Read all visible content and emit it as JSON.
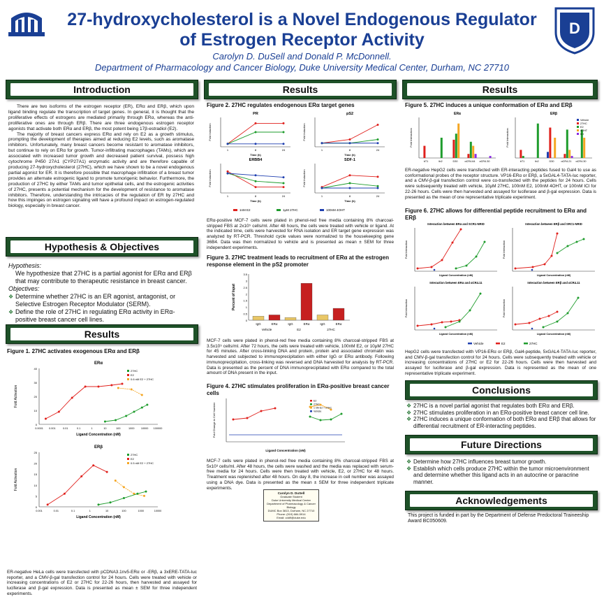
{
  "header": {
    "title_line1": "27-hydroxycholesterol is a Novel Endogenous Regulator",
    "title_line2": "of Estrogen Receptor Activity",
    "authors": "Carolyn D. DuSell and Donald P. McDonnell.",
    "department": "Department of Pharmacology and Cancer Biology, Duke University Medical Center, Durham, NC 27710"
  },
  "colors": {
    "bar": "#1e5128",
    "title": "#1a3f94",
    "vehicle": "#1f3fb0",
    "e2": "#e0201c",
    "c27": "#1e9c2c",
    "e2c27": "#f5a623",
    "icon": "#1a3f94"
  },
  "icons": [
    "duke-left-logo-icon",
    "duke-shield-icon"
  ],
  "sections": {
    "introduction": "Introduction",
    "hypothesis": "Hypothesis & Objectives",
    "results": "Results",
    "conclusions": "Conclusions",
    "future": "Future Directions",
    "acknowledgements": "Acknowledgements"
  },
  "intro": {
    "p1": "There are two isoforms of the estrogen receptor (ER), ERα and ERβ, which upon ligand binding regulate the transcription of target genes. In general, it is thought that the proliferative effects of estrogens are mediated primarily through ERα, whereas the anti-proliferative ones are through ERβ. There are three endogenous estrogen receptor agonists that activate both ERα and ERβ, the most potent being 17β-estradiol (E2).",
    "p2": "The majority of breast cancers express ERα and rely on E2 as a growth stimulus, prompting the development of therapies aimed at reducing E2 levels, such as aromatase inhibitors. Unfortunately, many breast cancers become resistant to aromatase inhibitors, but continue to rely on ERα for growth. Tumor-infiltrating macrophages (TAMs), which are associated with increased tumor growth and decreased patient survival, possess high cytochrome P450 27A1 (CYP27A1) enzymatic activity and are therefore capable of producing 27-hydroxycholesterol (27HC), which we have shown to be a novel endogenous partial agonist for ER. It is therefore possible that macrophage infiltration of a breast tumor provides an alternate estrogenic ligand to promote tumorigenic behavior. Furthermore, the production of 27HC by either TAMs and tumor epithelial cells, and the estrogenic activities of 27HC, presents a potential mechanism for the development of resistance to aromatase inhibitors. Therefore, understanding the intricacies of the regulation of ER by 27HC and how this impinges on estrogen signaling will have a profound impact on estrogen-regulated biology, especially in breast cancer."
  },
  "hypothesis": {
    "label": "Hypothesis:",
    "text": "We hypothesize that 27HC is a partial agonist for ERα and ERβ that may contribute to therapeutic resistance in breast cancer.",
    "obj_label": "Objectives:",
    "objectives": [
      "Determine whether 27HC is an ER agonist, antagonist, or Selective Estrogen Receptor Modulator (SERM).",
      "Define the role of 27HC in regulating ERα activity in ERα-positive breast cancer cell lines."
    ]
  },
  "fig1": {
    "title": "Figure 1. 27HC activates exogenous ERα and ERβ",
    "caption": "ER-negative HeLa cells were transfected with pCDNA3.1nv5-ERα or -ERβ, a 3xERE-TATA-luc reporter, and a CMV-β-gal transfection control for 24 hours. Cells were treated with vehicle or increasing concentrations of E2 or 27HC for 22-26 hours, then harvested and assayed for luciferase and β-gal expression. Data is presented as mean ± SEM for three independent experiments."
  },
  "fig2": {
    "title": "Figure 2. 27HC regulates endogenous ERα target genes",
    "caption": "ERα-positive MCF-7 cells were plated in phenol-red free media containing 8% charcoal-stripped FBS at 2x10⁵ cells/ml. After 48 hours, the cells were treated with vehicle or ligand. At the indicated time, cells were harvested for RNA isolation and ER target gene expression was analyzed by RT-PCR. Threshold cycle values were normalized to the housekeeping gene 36B4. Data was then normalized to vehicle and is presented as mean ± SEM for three independent experiments."
  },
  "fig3": {
    "title": "Figure 3. 27HC treatment leads to recruitment of ERα at the estrogen response element in the pS2 promoter",
    "caption": "MCF-7 cells were plated in phenol-red free media containing 8% charcoal-stripped FBS at 3.5x10⁵ cells/ml. After 72 hours, the cells were treated with vehicle, 100nM E2, or 10μM 27HC for 45 minutes. After cross-linking DNA and protein, protein and associated chromatin was harvested and subjected to immunoprecipitation with either IgG or ERα antibody. Following immunoprecipitation, cross-linking was reversed and DNA harvested for analysis by RT-PCR. Data is presented as the percent of DNA immunoprecipitated with ERα compared to the total amount of DNA present in the input."
  },
  "fig4": {
    "title": "Figure 4. 27HC stimulates proliferation in ERα-positive breast cancer cells",
    "caption": "MCF-7 cells were plated in phenol-red free media containing 8% charcoal-stripped FBS at 5x10³ cells/ml. After 48 hours, the cells were washed and the media was replaced with serum-free media for 24 hours. Cells were then treated with vehicle, E2, or 27HC for 48 hours. Treatment was replenished after 48 hours. On day 8, the increase in cell number was assayed using a DNA dye. Data is presented as the mean ± SEM for three independent triplicate experiments."
  },
  "fig5": {
    "title": "Figure 5. 27HC induces a unique conformation of ERα and ERβ",
    "caption": "ER-negative HepG2 cells were transfected with ER-interacting peptides fused to Gal4 to use as conformational probes of the receptor structure. VP16-ERα or ERβ, a 5xGAL4-TATA-luc reporter, and a CMV-β-gal transfection control were co-transfected with the peptides for 24 hours. Cells were subsequently treated with vehicle, 10μM 27HC, 100nM E2, 100nM 4OHT, or 100nM ICI for 22-26 hours. Cells were then harvested and assayed for luciferase and β-gal expression. Data is presented as the mean of one representative triplicate experiment."
  },
  "fig6": {
    "title": "Figure 6. 27HC allows for differential peptide recruitment to ERα and ERβ",
    "caption": "HepG2 cells were transfected with VP16-ERα or ERβ, Gal4-peptide, 5xGAL4-TATA-luc reporter, and CMV-β-gal transfection control for 24 hours. Cells were subsequently treated with vehicle or increasing concentrations of 27HC or E2 for 22-26 hours. Cells were then harvested and assayed for luciferase and β-gal expression. Data is represented as the mean of one representative triplicate experiment."
  },
  "conclusions": [
    "27HC is a novel partial agonist that regulates both ERα and ERβ.",
    "27HC stimulates proliferation in an ERα-positive breast cancer cell line.",
    "27HC induces a unique conformation of both ERα and ERβ that allows for differential recruitment of ER-interacting peptides."
  ],
  "future": [
    "Determine how 27HC influences breast tumor growth.",
    "Establish which cells produce 27HC within the tumor microenvironment and determine whether this ligand acts in an autocrine or paracrine manner."
  ],
  "ack": "This project is funded in part by the Department of Defense Predoctoral Traineeship Award BC050609.",
  "card": {
    "name": "Carolyn D. DuSell",
    "role": "Graduate Student",
    "org": "Duke University Medical Center",
    "dept": "Department of Pharmacology & Cancer Biology",
    "addr": "DUMC Box 3813, Durham, NC 27710",
    "phone": "Phone: (919) 684-5914",
    "email": "Email: cdd9@duke.edu"
  },
  "chart_data": [
    {
      "type": "line",
      "title": "ERα",
      "xlabel": "Ligand Concentration (nM)",
      "ylabel": "Fold Activation",
      "xscale": "log",
      "ylim": [
        0,
        40
      ],
      "x": [
        "0.0001",
        "0.001",
        "0.01",
        "0.1",
        "1",
        "10",
        "100",
        "1000",
        "10000",
        "100000"
      ],
      "series": [
        {
          "name": "27HC",
          "color": "green"
        },
        {
          "name": "E2",
          "color": "red"
        },
        {
          "name": "0.6 nM E2 + 27HC",
          "color": "orange"
        }
      ]
    },
    {
      "type": "line",
      "title": "ERβ",
      "xlabel": "Ligand Concentration (nM)",
      "ylabel": "Fold Activation",
      "xscale": "log",
      "ylim": [
        0,
        25
      ],
      "x": [
        "0.001",
        "0.01",
        "0.1",
        "1",
        "10",
        "100",
        "1000",
        "10000"
      ],
      "series": [
        {
          "name": "27HC"
        },
        {
          "name": "E2"
        },
        {
          "name": "0.5 nM E2 + 27HC"
        }
      ]
    },
    {
      "type": "line",
      "title": "PR",
      "xlabel": "Time (h)",
      "ylabel": "Fold Induction",
      "x": [
        1,
        8,
        24
      ],
      "series": [
        {
          "name": "1nM E2",
          "values": [
            1,
            8,
            8
          ]
        },
        {
          "name": "1μM 27HC",
          "values": [
            1,
            5,
            5
          ]
        },
        {
          "name": "100nM 4OHT",
          "values": [
            1,
            1,
            1
          ]
        }
      ]
    },
    {
      "type": "line",
      "title": "pS2",
      "xlabel": "Time (h)",
      "ylabel": "Fold Induction",
      "x": [
        1,
        8,
        24
      ],
      "series": [
        {
          "name": "1nM E2",
          "values": [
            1,
            2,
            6
          ]
        },
        {
          "name": "1μM 27HC",
          "values": [
            1,
            1,
            2
          ]
        },
        {
          "name": "100nM 4OHT",
          "values": [
            1,
            1,
            1
          ]
        }
      ]
    },
    {
      "type": "line",
      "title": "ERBB4",
      "xlabel": "Time (h)",
      "ylabel": "Fold Induction",
      "x": [
        1,
        8,
        24
      ],
      "series": [
        {
          "name": "1nM E2",
          "values": [
            1.1,
            0.3,
            0.3
          ]
        },
        {
          "name": "1μM 27HC",
          "values": [
            1,
            0.6,
            0.5
          ]
        },
        {
          "name": "100nM 4OHT",
          "values": [
            1,
            0.9,
            0.8
          ]
        }
      ]
    },
    {
      "type": "line",
      "title": "SDF-1",
      "xlabel": "Time (h)",
      "ylabel": "Fold Induction",
      "x": [
        1,
        8,
        24
      ],
      "series": [
        {
          "name": "1nM E2",
          "values": [
            1.2,
            3.6,
            3.3
          ]
        },
        {
          "name": "1μM 27HC",
          "values": [
            1,
            2,
            1.4
          ]
        },
        {
          "name": "100nM 4OHT",
          "values": [
            1,
            1,
            1
          ]
        }
      ]
    },
    {
      "type": "bar",
      "title": "",
      "ylabel": "Percent of Input",
      "ylim": [
        0,
        3.5
      ],
      "categories": [
        "IgG",
        "ERα",
        "IgG",
        "ERα",
        "IgG",
        "ERα"
      ],
      "groups": [
        "Vehicle",
        "E2",
        "27HC"
      ],
      "values": [
        0.3,
        0.4,
        0.2,
        2.8,
        0.4,
        0.9
      ]
    },
    {
      "type": "line",
      "title": "",
      "xlabel": "Ligand Concentration (nM)",
      "ylabel": "Fold Change in Cell Number",
      "series": [
        {
          "name": "E2"
        },
        {
          "name": "27HC"
        },
        {
          "name": "1 nM E2 + 27HC"
        },
        {
          "name": "Vehicle"
        }
      ]
    },
    {
      "type": "bar",
      "title": "ERα",
      "xlabel": "",
      "ylabel": "Fold Interaction",
      "categories": [
        "bT1",
        "tb2",
        "D30",
        "αCR4.64",
        "αCR4.30"
      ],
      "series": [
        {
          "name": "Vehicle"
        },
        {
          "name": "27HC"
        },
        {
          "name": "E2"
        },
        {
          "name": "4OHT"
        },
        {
          "name": "ICI"
        }
      ]
    },
    {
      "type": "bar",
      "title": "ERβ",
      "xlabel": "",
      "ylabel": "Fold Interaction",
      "categories": [
        "bT1",
        "tb2",
        "D30",
        "αCR4.21",
        "αCR4.30"
      ],
      "series": [
        {
          "name": "Vehicle"
        },
        {
          "name": "27HC"
        },
        {
          "name": "E2"
        },
        {
          "name": "4OHT"
        },
        {
          "name": "ICI"
        }
      ]
    },
    {
      "type": "line",
      "title": "Interaction between ERα and SCR1-NRID",
      "xlabel": "Ligand Concentration (nM)",
      "ylabel": "Fold Interaction"
    },
    {
      "type": "line",
      "title": "Interaction between ERβ and SRC1-NRID",
      "xlabel": "Ligand Concentration (nM)",
      "ylabel": "Fold Interaction"
    },
    {
      "type": "line",
      "title": "Interaction between ERα and αCR4.11",
      "xlabel": "Ligand Concentration (nM)",
      "ylabel": "Fold Interaction"
    },
    {
      "type": "line",
      "title": "Interaction between ERβ and αCR4.11",
      "xlabel": "Ligand Concentration (nM)",
      "ylabel": "Fold Interaction"
    }
  ],
  "legend6": [
    "Vehicle",
    "E2",
    "27HC"
  ],
  "legend2": [
    "1nM E2",
    "1μM 27HC",
    "100nM 4OHT"
  ],
  "fig3groups": [
    "Vehicle",
    "E2",
    "27HC"
  ]
}
